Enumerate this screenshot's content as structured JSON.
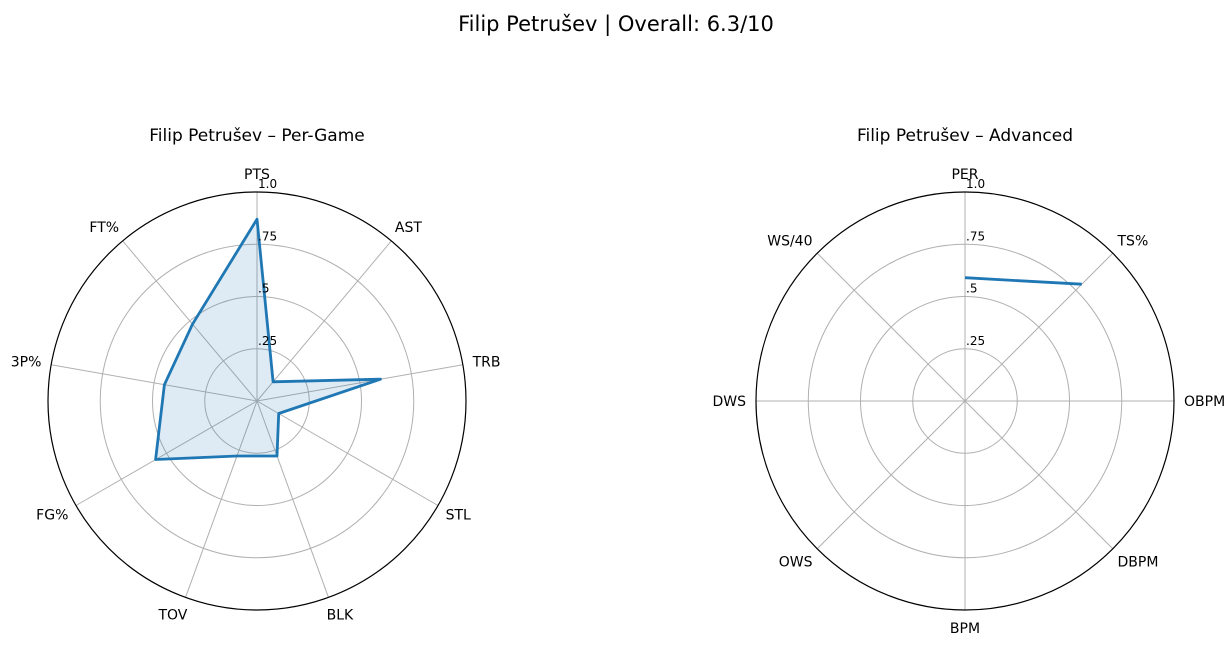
{
  "figure": {
    "suptitle": "Filip Petrušev | Overall: 6.3/10"
  },
  "chart_data": [
    {
      "type": "radar",
      "title": "Filip Petrušev – Per-Game",
      "categories": [
        "PTS",
        "AST",
        "TRB",
        "STL",
        "BLK",
        "TOV",
        "FG%",
        "3P%",
        "FT%"
      ],
      "values": [
        0.87,
        0.12,
        0.6,
        0.12,
        0.28,
        0.28,
        0.56,
        0.45,
        0.48
      ],
      "rlim": [
        0,
        1.0
      ],
      "rticks": [
        0.25,
        0.5,
        0.75,
        1.0
      ],
      "rtick_labels": [
        ".25",
        ".5",
        ".75",
        "1.0"
      ],
      "filled": true,
      "closed": true,
      "grid": true,
      "line_color": "#1f77b4",
      "fill_color": "#1f77b4"
    },
    {
      "type": "radar",
      "title": "Filip Petrušev – Advanced",
      "categories": [
        "PER",
        "TS%",
        "OBPM",
        "DBPM",
        "BPM",
        "OWS",
        "DWS",
        "WS/40"
      ],
      "values": [
        0.59,
        0.79,
        null,
        null,
        null,
        null,
        null,
        null
      ],
      "rlim": [
        0,
        1.0
      ],
      "rticks": [
        0.25,
        0.5,
        0.75,
        1.0
      ],
      "rtick_labels": [
        ".25",
        ".5",
        ".75",
        "1.0"
      ],
      "filled": false,
      "closed": false,
      "grid": true,
      "line_color": "#1f77b4"
    }
  ]
}
